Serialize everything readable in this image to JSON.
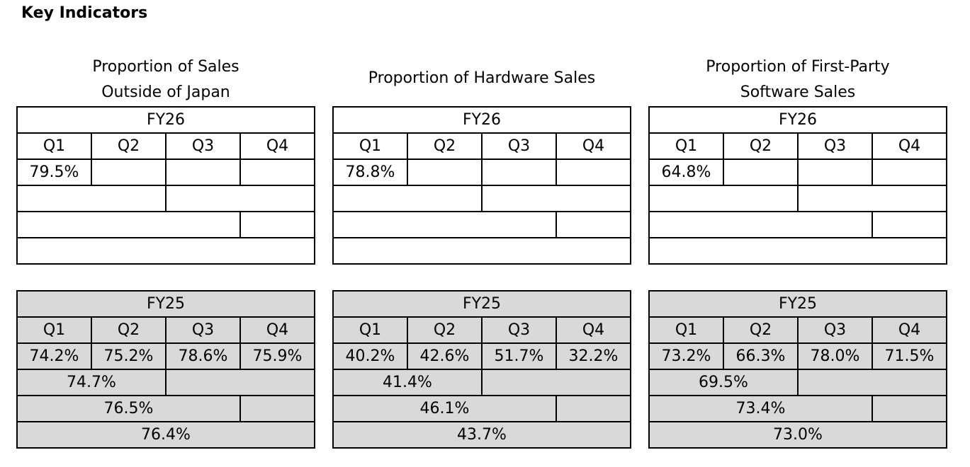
{
  "page": {
    "title": "Key Indicators"
  },
  "panels": [
    {
      "title_lines": [
        "Proportion of Sales",
        "Outside of Japan"
      ],
      "current": {
        "year": "FY26",
        "quarters": [
          "Q1",
          "Q2",
          "Q3",
          "Q4"
        ],
        "quarter_values": [
          "79.5%",
          "",
          "",
          ""
        ],
        "half_year": "",
        "nine_months": "",
        "full_year": ""
      },
      "previous": {
        "year": "FY25",
        "quarters": [
          "Q1",
          "Q2",
          "Q3",
          "Q4"
        ],
        "quarter_values": [
          "74.2%",
          "75.2%",
          "78.6%",
          "75.9%"
        ],
        "half_year": "74.7%",
        "nine_months": "76.5%",
        "full_year": "76.4%"
      }
    },
    {
      "title_lines": [
        "Proportion of Hardware Sales"
      ],
      "current": {
        "year": "FY26",
        "quarters": [
          "Q1",
          "Q2",
          "Q3",
          "Q4"
        ],
        "quarter_values": [
          "78.8%",
          "",
          "",
          ""
        ],
        "half_year": "",
        "nine_months": "",
        "full_year": ""
      },
      "previous": {
        "year": "FY25",
        "quarters": [
          "Q1",
          "Q2",
          "Q3",
          "Q4"
        ],
        "quarter_values": [
          "40.2%",
          "42.6%",
          "51.7%",
          "32.2%"
        ],
        "half_year": "41.4%",
        "nine_months": "46.1%",
        "full_year": "43.7%"
      }
    },
    {
      "title_lines": [
        "Proportion of First-Party",
        "Software Sales"
      ],
      "current": {
        "year": "FY26",
        "quarters": [
          "Q1",
          "Q2",
          "Q3",
          "Q4"
        ],
        "quarter_values": [
          "64.8%",
          "",
          "",
          ""
        ],
        "half_year": "",
        "nine_months": "",
        "full_year": ""
      },
      "previous": {
        "year": "FY25",
        "quarters": [
          "Q1",
          "Q2",
          "Q3",
          "Q4"
        ],
        "quarter_values": [
          "73.2%",
          "66.3%",
          "78.0%",
          "71.5%"
        ],
        "half_year": "69.5%",
        "nine_months": "73.4%",
        "full_year": "73.0%"
      }
    }
  ]
}
